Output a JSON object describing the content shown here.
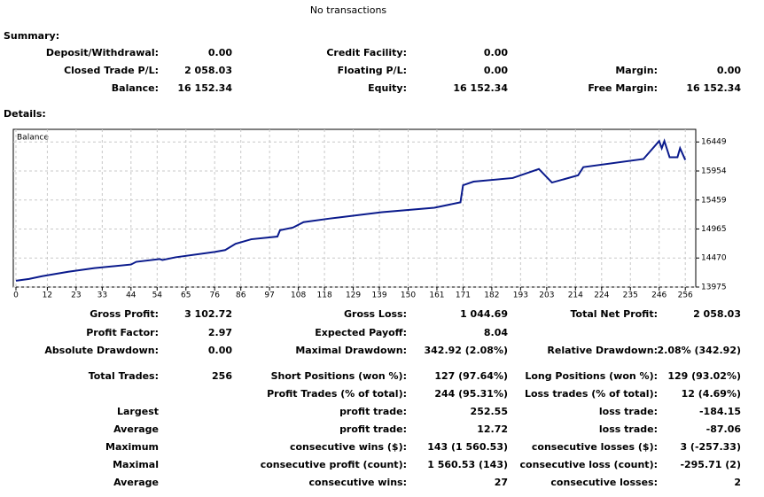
{
  "header": {
    "title": "No transactions"
  },
  "summary": {
    "label": "Summary:",
    "rows": [
      [
        "Deposit/Withdrawal:",
        "0.00",
        "Credit Facility:",
        "0.00",
        null,
        null
      ],
      [
        "Closed Trade P/L:",
        "2 058.03",
        "Floating P/L:",
        "0.00",
        "Margin:",
        "0.00"
      ],
      [
        "Balance:",
        "16 152.34",
        "Equity:",
        "16 152.34",
        "Free Margin:",
        "16 152.34"
      ]
    ]
  },
  "details": {
    "label": "Details:"
  },
  "chart_data": {
    "type": "line",
    "x": [
      0,
      5,
      10,
      20,
      30,
      44,
      46,
      55,
      56,
      61,
      76,
      80,
      84,
      90,
      100,
      101,
      106,
      110,
      120,
      140,
      160,
      170,
      171,
      175,
      190,
      200,
      201,
      205,
      215,
      217,
      240,
      246,
      247,
      248,
      250,
      253,
      254,
      256
    ],
    "series": [
      {
        "name": "Balance",
        "color": "#0a1a8c",
        "values": [
          14083,
          14113,
          14160,
          14236,
          14298,
          14359,
          14405,
          14452,
          14436,
          14482,
          14574,
          14605,
          14713,
          14790,
          14836,
          14943,
          14990,
          15082,
          15143,
          15251,
          15327,
          15419,
          15711,
          15772,
          15834,
          15988,
          15941,
          15757,
          15880,
          16019,
          16158,
          16465,
          16342,
          16465,
          16188,
          16188,
          16342,
          16142
        ]
      }
    ],
    "xlim": [
      0,
      260
    ],
    "xticks": [
      0,
      12,
      23,
      33,
      44,
      54,
      65,
      76,
      86,
      97,
      108,
      118,
      129,
      139,
      150,
      161,
      171,
      182,
      193,
      203,
      214,
      224,
      235,
      246,
      256
    ],
    "ylim": [
      13975,
      16664
    ],
    "yticks": [
      13975,
      14470,
      14965,
      15459,
      15954,
      16449
    ],
    "grid": true
  },
  "stats": {
    "rows": [
      [
        "Gross Profit:",
        "3 102.72",
        "Gross Loss:",
        "1 044.69",
        "Total Net Profit:",
        "2 058.03"
      ],
      [
        "Profit Factor:",
        "2.97",
        "Expected Payoff:",
        "8.04",
        null,
        null
      ],
      [
        "Absolute Drawdown:",
        "0.00",
        "Maximal Drawdown:",
        "342.92 (2.08%)",
        "Relative Drawdown:",
        "2.08% (342.92)"
      ],
      [
        "Total Trades:",
        "256",
        "Short Positions (won %):",
        "127 (97.64%)",
        "Long Positions (won %):",
        "129 (93.02%)"
      ],
      [
        null,
        null,
        "Profit Trades (% of total):",
        "244 (95.31%)",
        "Loss trades (% of total):",
        "12 (4.69%)"
      ],
      [
        "Largest",
        null,
        "profit trade:",
        "252.55",
        "loss trade:",
        "-184.15"
      ],
      [
        "Average",
        null,
        "profit trade:",
        "12.72",
        "loss trade:",
        "-87.06"
      ],
      [
        "Maximum",
        null,
        "consecutive wins ($):",
        "143 (1 560.53)",
        "consecutive losses ($):",
        "3 (-257.33)"
      ],
      [
        "Maximal",
        null,
        "consecutive profit (count):",
        "1 560.53 (143)",
        "consecutive loss (count):",
        "-295.71 (2)"
      ],
      [
        "Average",
        null,
        "consecutive wins:",
        "27",
        "consecutive losses:",
        "2"
      ]
    ]
  }
}
